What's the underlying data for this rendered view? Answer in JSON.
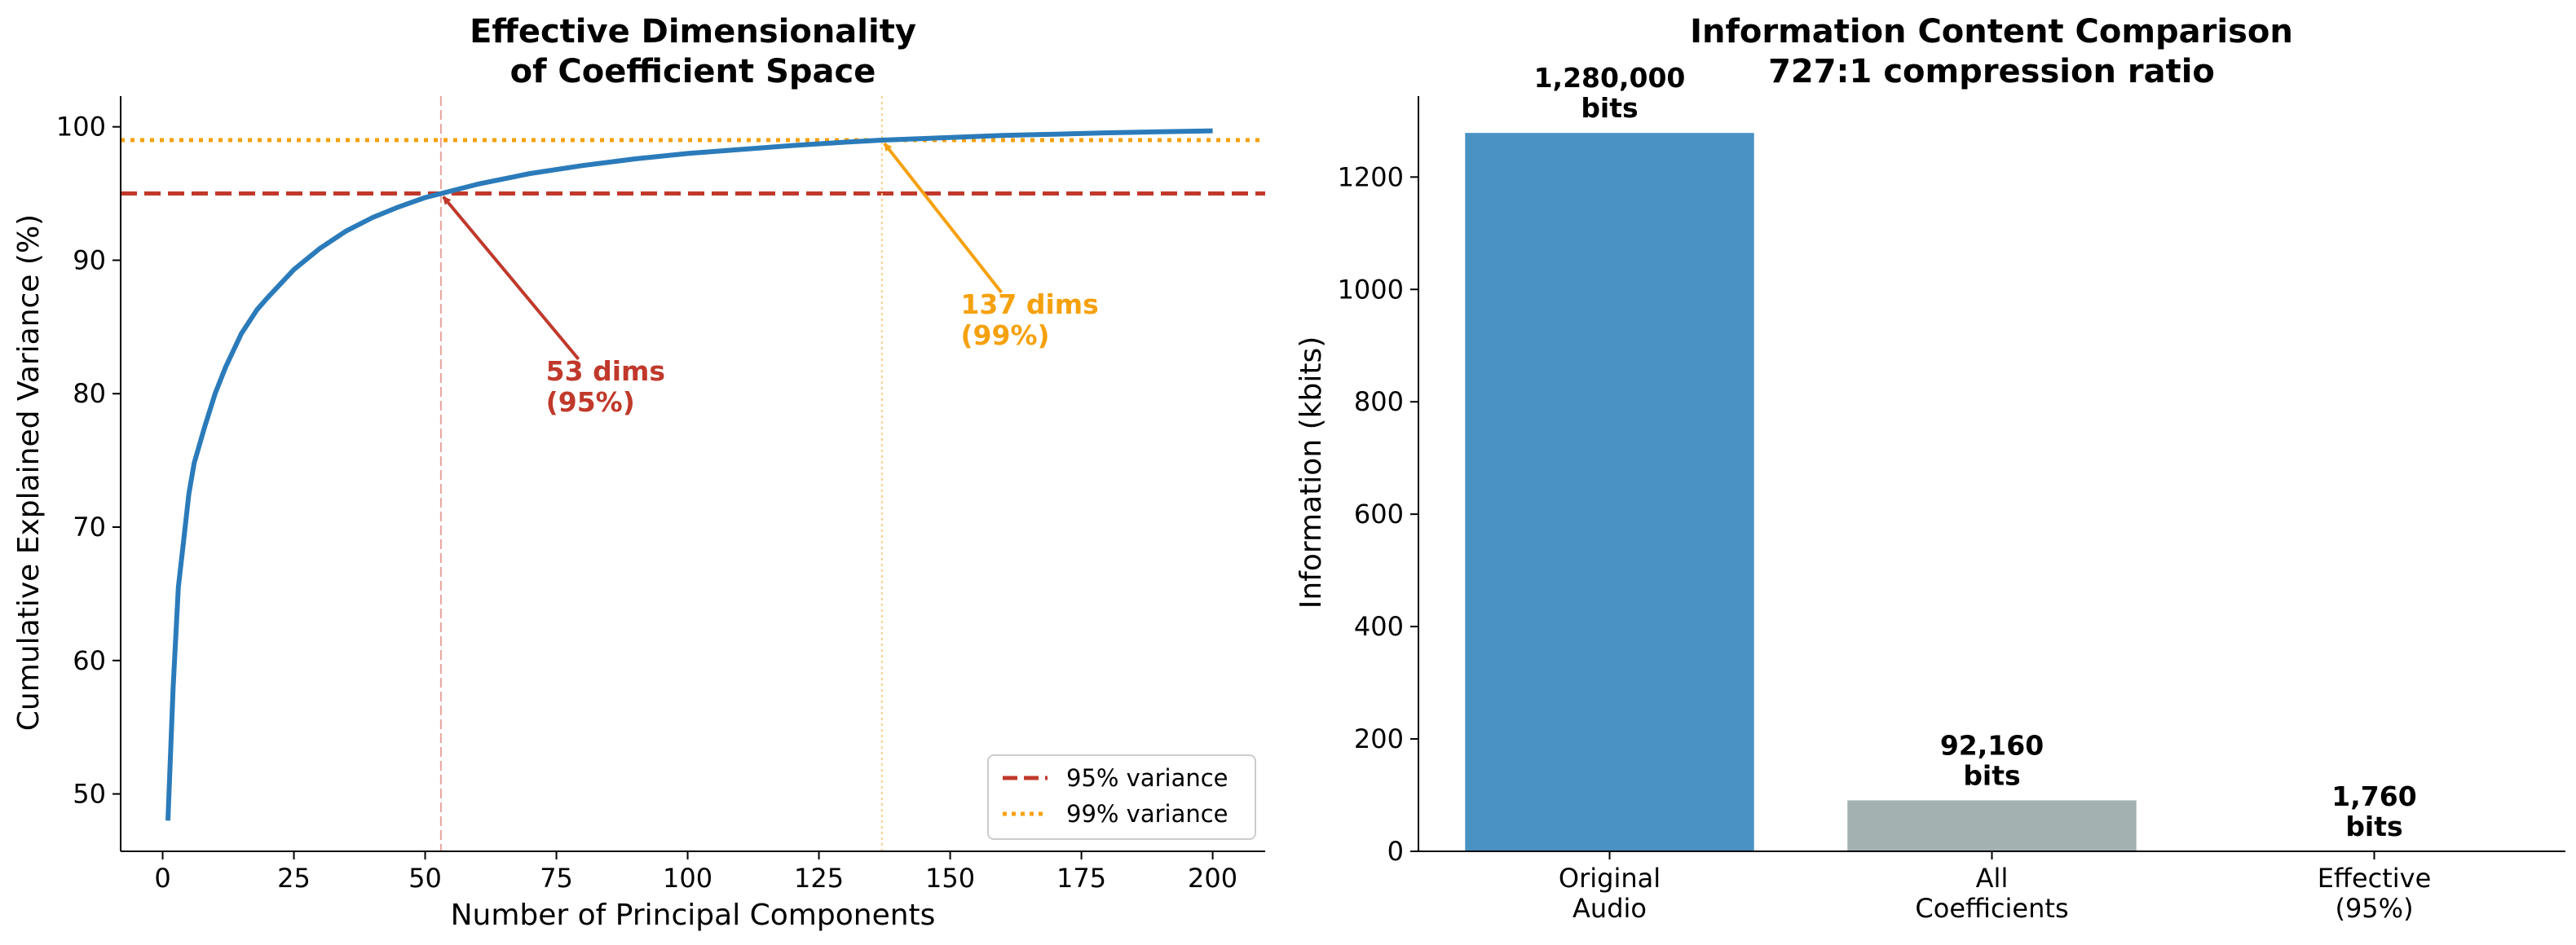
{
  "chart_data": [
    {
      "type": "line",
      "title": "Effective Dimensionality",
      "subtitle": "of Coefficient Space",
      "xlabel": "Number of Principal Components",
      "ylabel": "Cumulative Explained Variance (%)",
      "xlim": [
        -8,
        210
      ],
      "ylim": [
        45.7,
        102.3
      ],
      "xticks": [
        0,
        25,
        50,
        75,
        100,
        125,
        150,
        175,
        200
      ],
      "yticks": [
        50,
        60,
        70,
        80,
        90,
        100
      ],
      "grid": false,
      "legend_position": "bottom-right",
      "series": [
        {
          "name": "",
          "color": "#2b7bba",
          "x": [
            1,
            2,
            3,
            4,
            5,
            6,
            8,
            10,
            12,
            15,
            18,
            20,
            25,
            30,
            35,
            40,
            45,
            50,
            53,
            60,
            70,
            80,
            90,
            100,
            110,
            120,
            130,
            137,
            150,
            160,
            170,
            180,
            190,
            200
          ],
          "y": [
            48.0,
            58.0,
            65.5,
            69.0,
            72.5,
            74.8,
            77.5,
            80.0,
            82.0,
            84.5,
            86.3,
            87.2,
            89.3,
            90.9,
            92.2,
            93.2,
            94.0,
            94.7,
            95.0,
            95.7,
            96.5,
            97.1,
            97.6,
            98.0,
            98.3,
            98.6,
            98.85,
            99.0,
            99.2,
            99.35,
            99.45,
            99.55,
            99.63,
            99.7
          ]
        }
      ],
      "reference_lines": [
        {
          "name": "95% variance",
          "axis": "y",
          "value": 95,
          "style": "dashed",
          "color": "#c0392b"
        },
        {
          "name": "99% variance",
          "axis": "y",
          "value": 99,
          "style": "dotted",
          "color": "#f5a10e"
        },
        {
          "axis": "x",
          "value": 53,
          "style": "dashed",
          "color": "#e8a49c"
        },
        {
          "axis": "x",
          "value": 137,
          "style": "dotted",
          "color": "#f8cf8d"
        }
      ],
      "annotations": [
        {
          "lines": [
            "53 dims",
            "(95%)"
          ],
          "point": [
            53,
            95
          ],
          "text_at": [
            73,
            81
          ],
          "color": "#c0392b"
        },
        {
          "lines": [
            "137 dims",
            "(99%)"
          ],
          "point": [
            137,
            99
          ],
          "text_at": [
            152,
            86
          ],
          "color": "#f5a10e"
        }
      ]
    },
    {
      "type": "bar",
      "title": "Information Content Comparison",
      "subtitle": "727:1 compression ratio",
      "xlabel": "",
      "ylabel": "Information (kbits)",
      "ylim": [
        0,
        1344
      ],
      "yticks": [
        0,
        200,
        400,
        600,
        800,
        1000,
        1200
      ],
      "grid": false,
      "categories": [
        [
          "Original",
          "Audio"
        ],
        [
          "All",
          "Coefficients"
        ],
        [
          "Effective",
          "(95%)"
        ]
      ],
      "values": [
        1280,
        92.16,
        1.76
      ],
      "colors": [
        "#4a92c3",
        "#a3b1b1",
        "#c89b2a"
      ],
      "value_labels": [
        [
          "1,280,000",
          "bits"
        ],
        [
          "92,160",
          "bits"
        ],
        [
          "1,760",
          "bits"
        ]
      ]
    }
  ]
}
